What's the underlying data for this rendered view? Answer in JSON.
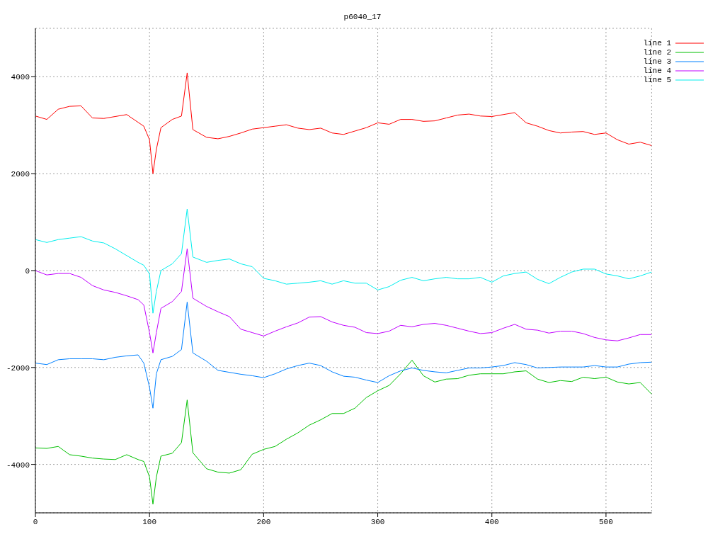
{
  "chart_data": {
    "type": "line",
    "title": "p6040_17",
    "x": [
      0,
      10,
      20,
      30,
      40,
      50,
      60,
      70,
      80,
      90,
      95,
      100,
      103,
      106,
      110,
      120,
      128,
      133,
      138,
      150,
      160,
      170,
      180,
      190,
      200,
      210,
      220,
      230,
      240,
      250,
      260,
      270,
      280,
      290,
      300,
      310,
      320,
      330,
      340,
      350,
      360,
      370,
      380,
      390,
      400,
      410,
      420,
      430,
      440,
      450,
      460,
      470,
      480,
      490,
      500,
      510,
      520,
      530,
      540
    ],
    "series": [
      {
        "name": "line 1",
        "color": "#ff0000",
        "values": [
          3190,
          3120,
          3330,
          3390,
          3400,
          3150,
          3140,
          3180,
          3220,
          3060,
          2980,
          2700,
          2000,
          2500,
          2950,
          3120,
          3190,
          4080,
          2910,
          2750,
          2720,
          2770,
          2840,
          2920,
          2950,
          2980,
          3010,
          2940,
          2910,
          2940,
          2840,
          2810,
          2880,
          2950,
          3050,
          3020,
          3120,
          3120,
          3080,
          3090,
          3150,
          3210,
          3230,
          3190,
          3180,
          3220,
          3260,
          3050,
          2980,
          2890,
          2840,
          2860,
          2870,
          2810,
          2840,
          2700,
          2610,
          2650,
          2580
        ]
      },
      {
        "name": "line 2",
        "color": "#00c000",
        "values": [
          -3660,
          -3670,
          -3630,
          -3800,
          -3830,
          -3870,
          -3890,
          -3900,
          -3800,
          -3900,
          -3940,
          -4260,
          -4820,
          -4260,
          -3830,
          -3770,
          -3550,
          -2670,
          -3760,
          -4090,
          -4160,
          -4180,
          -4110,
          -3790,
          -3690,
          -3630,
          -3480,
          -3350,
          -3190,
          -3080,
          -2950,
          -2950,
          -2840,
          -2620,
          -2480,
          -2370,
          -2130,
          -1850,
          -2170,
          -2300,
          -2240,
          -2230,
          -2160,
          -2130,
          -2130,
          -2130,
          -2090,
          -2070,
          -2240,
          -2310,
          -2270,
          -2290,
          -2200,
          -2230,
          -2200,
          -2300,
          -2340,
          -2310,
          -2550
        ]
      },
      {
        "name": "line 3",
        "color": "#0080ff",
        "values": [
          -1910,
          -1940,
          -1840,
          -1820,
          -1820,
          -1820,
          -1840,
          -1790,
          -1760,
          -1740,
          -1910,
          -2410,
          -2840,
          -2130,
          -1840,
          -1770,
          -1630,
          -650,
          -1700,
          -1870,
          -2060,
          -2100,
          -2140,
          -2170,
          -2210,
          -2130,
          -2030,
          -1960,
          -1910,
          -1960,
          -2090,
          -2180,
          -2200,
          -2260,
          -2310,
          -2170,
          -2070,
          -2010,
          -2060,
          -2090,
          -2110,
          -2060,
          -2010,
          -2010,
          -1990,
          -1960,
          -1900,
          -1940,
          -2010,
          -2000,
          -1990,
          -1990,
          -1990,
          -1960,
          -1990,
          -1990,
          -1930,
          -1900,
          -1890
        ]
      },
      {
        "name": "line 4",
        "color": "#c000ff",
        "values": [
          0,
          -90,
          -60,
          -60,
          -140,
          -310,
          -400,
          -450,
          -520,
          -600,
          -710,
          -1280,
          -1700,
          -1280,
          -780,
          -640,
          -430,
          450,
          -570,
          -740,
          -850,
          -950,
          -1210,
          -1280,
          -1350,
          -1250,
          -1160,
          -1080,
          -960,
          -950,
          -1060,
          -1130,
          -1170,
          -1280,
          -1300,
          -1250,
          -1130,
          -1160,
          -1110,
          -1090,
          -1130,
          -1190,
          -1250,
          -1300,
          -1280,
          -1190,
          -1110,
          -1210,
          -1230,
          -1290,
          -1250,
          -1250,
          -1300,
          -1380,
          -1430,
          -1450,
          -1390,
          -1320,
          -1320
        ]
      },
      {
        "name": "line 5",
        "color": "#00eeee",
        "values": [
          640,
          580,
          640,
          670,
          700,
          610,
          570,
          450,
          310,
          170,
          110,
          -70,
          -880,
          -430,
          0,
          140,
          350,
          1270,
          280,
          170,
          210,
          240,
          140,
          80,
          -160,
          -210,
          -280,
          -260,
          -240,
          -210,
          -280,
          -210,
          -260,
          -260,
          -400,
          -330,
          -200,
          -140,
          -210,
          -170,
          -140,
          -170,
          -170,
          -140,
          -240,
          -110,
          -60,
          -30,
          -180,
          -270,
          -140,
          -30,
          30,
          30,
          -70,
          -110,
          -170,
          -110,
          -30
        ]
      }
    ],
    "xlim": [
      0,
      540
    ],
    "xticks": [
      0,
      100,
      200,
      300,
      400,
      500
    ],
    "ylim": [
      -5000,
      5000
    ],
    "yticks": [
      -4000,
      -2000,
      0,
      2000,
      4000
    ],
    "grid": true,
    "legend": "top right",
    "marker": "none",
    "line_style": "solid"
  }
}
